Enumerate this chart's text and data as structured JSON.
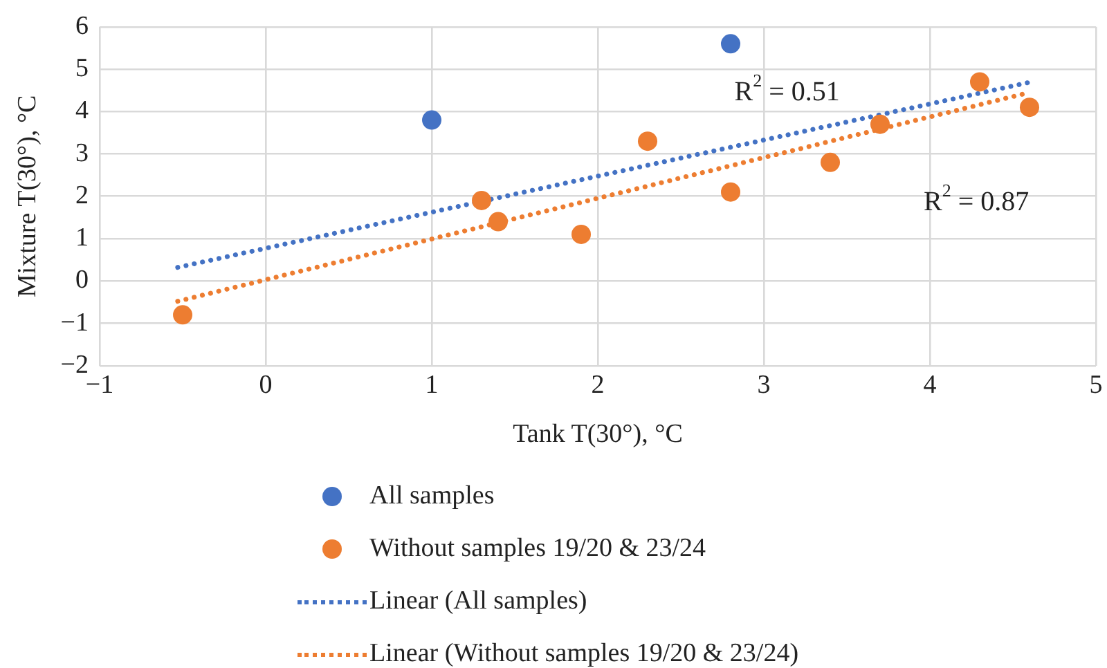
{
  "chart_data": {
    "type": "scatter",
    "xlabel": "Tank T(30°), °C",
    "ylabel": "Mixture T(30°), °C",
    "xlim": [
      -1,
      5
    ],
    "xticks": [
      {
        "value": -1,
        "label": "−1"
      },
      0,
      1,
      2,
      3,
      4,
      5
    ],
    "ylim": [
      -2,
      6
    ],
    "yticks": [
      {
        "value": -2,
        "label": "−2"
      },
      {
        "value": -1,
        "label": "−1"
      },
      0,
      1,
      2,
      3,
      4,
      5,
      6
    ],
    "grid": true,
    "legend": "bottom",
    "series": [
      {
        "name": "All samples",
        "marker": "circle",
        "color": "#4472c4",
        "x": [
          1.0,
          2.8
        ],
        "values": [
          3.8,
          5.6
        ]
      },
      {
        "name": "Without samples 19/20 & 23/24",
        "marker": "circle",
        "color": "#ed7d31",
        "x": [
          -0.5,
          1.3,
          1.4,
          1.9,
          2.3,
          2.8,
          3.4,
          3.7,
          4.3,
          4.6
        ],
        "values": [
          -0.8,
          1.9,
          1.4,
          1.1,
          3.3,
          2.1,
          2.8,
          3.7,
          4.7,
          4.1
        ]
      },
      {
        "name": "Linear (All samples)",
        "type": "line",
        "line_style": "dotted",
        "marker": "none",
        "color": "#4472c4",
        "x": [
          -0.53,
          4.6
        ],
        "values": [
          0.32,
          4.69
        ]
      },
      {
        "name": "Linear (Without samples 19/20 & 23/24)",
        "type": "line",
        "line_style": "dotted",
        "marker": "none",
        "color": "#ed7d31",
        "x": [
          -0.53,
          4.6
        ],
        "values": [
          -0.48,
          4.45
        ]
      }
    ],
    "annotations": [
      "R$^{2}$ = 0.51",
      "R$^{2}$ = 0.87"
    ]
  }
}
